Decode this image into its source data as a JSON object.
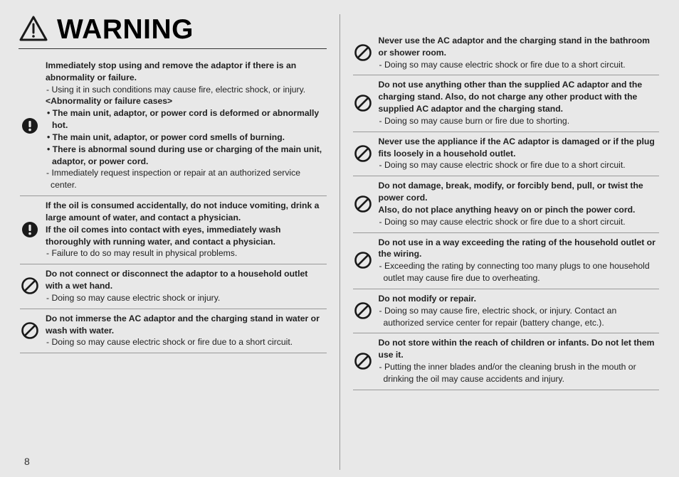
{
  "page_number": "8",
  "warning_title": "WARNING",
  "colors": {
    "background": "#e8e8e8",
    "text": "#222222",
    "rule": "#999999",
    "icon_black": "#1a1a1a"
  },
  "icons": {
    "triangle_alert": {
      "stroke": "#1a1a1a",
      "stroke_width": 3,
      "size": 42
    },
    "exclaim_circle": {
      "fill": "#1a1a1a",
      "size": 24
    },
    "prohibit": {
      "stroke": "#1a1a1a",
      "stroke_width": 2.6,
      "size": 24
    }
  },
  "left": [
    {
      "icon": "exclaim",
      "lines": [
        {
          "t": "bold",
          "v": "Immediately stop using and remove the adaptor if there is an abnormality or failure."
        },
        {
          "t": "sub",
          "v": "Using it in such conditions may cause fire, electric shock, or injury."
        },
        {
          "t": "bold",
          "v": "<Abnormality or failure cases>"
        },
        {
          "t": "bullet-bold",
          "v": "The main unit, adaptor, or power cord is deformed or abnormally hot."
        },
        {
          "t": "bullet-bold",
          "v": "The main unit, adaptor, or power cord smells of burning."
        },
        {
          "t": "bullet-bold",
          "v": "There is abnormal sound during use or charging of the main unit, adaptor, or power cord."
        },
        {
          "t": "sub",
          "v": "Immediately request inspection or repair at an authorized service center."
        }
      ]
    },
    {
      "icon": "exclaim",
      "lines": [
        {
          "t": "bold",
          "v": "If the oil is consumed accidentally, do not induce vomiting, drink a large amount of water, and contact a physician."
        },
        {
          "t": "bold",
          "v": "If the oil comes into contact with eyes, immediately wash thoroughly with running water, and contact a physician."
        },
        {
          "t": "sub",
          "v": "Failure to do so may result in physical problems."
        }
      ]
    },
    {
      "icon": "prohibit",
      "lines": [
        {
          "t": "bold",
          "v": "Do not connect or disconnect the adaptor to a household outlet with a wet hand."
        },
        {
          "t": "sub",
          "v": "Doing so may cause electric shock or injury."
        }
      ]
    },
    {
      "icon": "prohibit",
      "lines": [
        {
          "t": "bold",
          "v": "Do not immerse the AC adaptor and the charging stand in water or wash with water."
        },
        {
          "t": "sub",
          "v": "Doing so may cause electric shock or fire due to a short circuit."
        }
      ]
    }
  ],
  "right": [
    {
      "icon": "prohibit",
      "lines": [
        {
          "t": "bold",
          "v": "Never use the AC adaptor and the charging stand in the bathroom or shower room."
        },
        {
          "t": "sub",
          "v": "Doing so may cause electric shock or fire due to a short circuit."
        }
      ]
    },
    {
      "icon": "prohibit",
      "lines": [
        {
          "t": "bold",
          "v": "Do not use anything other than the supplied AC adaptor and the charging stand. Also, do not charge any other product with the supplied AC adaptor and the charging stand."
        },
        {
          "t": "sub",
          "v": "Doing so may cause burn or fire due to shorting."
        }
      ]
    },
    {
      "icon": "prohibit",
      "lines": [
        {
          "t": "bold",
          "v": "Never use the appliance if the AC adaptor is damaged or if the plug fits loosely in a household outlet."
        },
        {
          "t": "sub",
          "v": "Doing so may cause electric shock or fire due to a short circuit."
        }
      ]
    },
    {
      "icon": "prohibit",
      "lines": [
        {
          "t": "bold",
          "v": "Do not damage, break, modify, or forcibly bend, pull, or twist the power cord."
        },
        {
          "t": "bold",
          "v": "Also, do not place anything heavy on or pinch the power cord."
        },
        {
          "t": "sub",
          "v": "Doing so may cause electric shock or fire due to a short circuit."
        }
      ]
    },
    {
      "icon": "prohibit",
      "lines": [
        {
          "t": "bold",
          "v": "Do not use in a way exceeding the rating of the household outlet or the wiring."
        },
        {
          "t": "sub",
          "v": "Exceeding the rating by connecting too many plugs to one household outlet may cause fire due to overheating."
        }
      ]
    },
    {
      "icon": "prohibit",
      "lines": [
        {
          "t": "bold",
          "v": "Do not modify or repair."
        },
        {
          "t": "sub",
          "v": "Doing so may cause fire, electric shock, or injury. Contact an authorized service center for repair (battery change, etc.)."
        }
      ]
    },
    {
      "icon": "prohibit",
      "lines": [
        {
          "t": "bold",
          "v": "Do not store within the reach of children or infants. Do not let them use it."
        },
        {
          "t": "sub",
          "v": "Putting the inner blades and/or the cleaning brush in the mouth or drinking the oil may cause accidents and injury."
        }
      ]
    }
  ]
}
